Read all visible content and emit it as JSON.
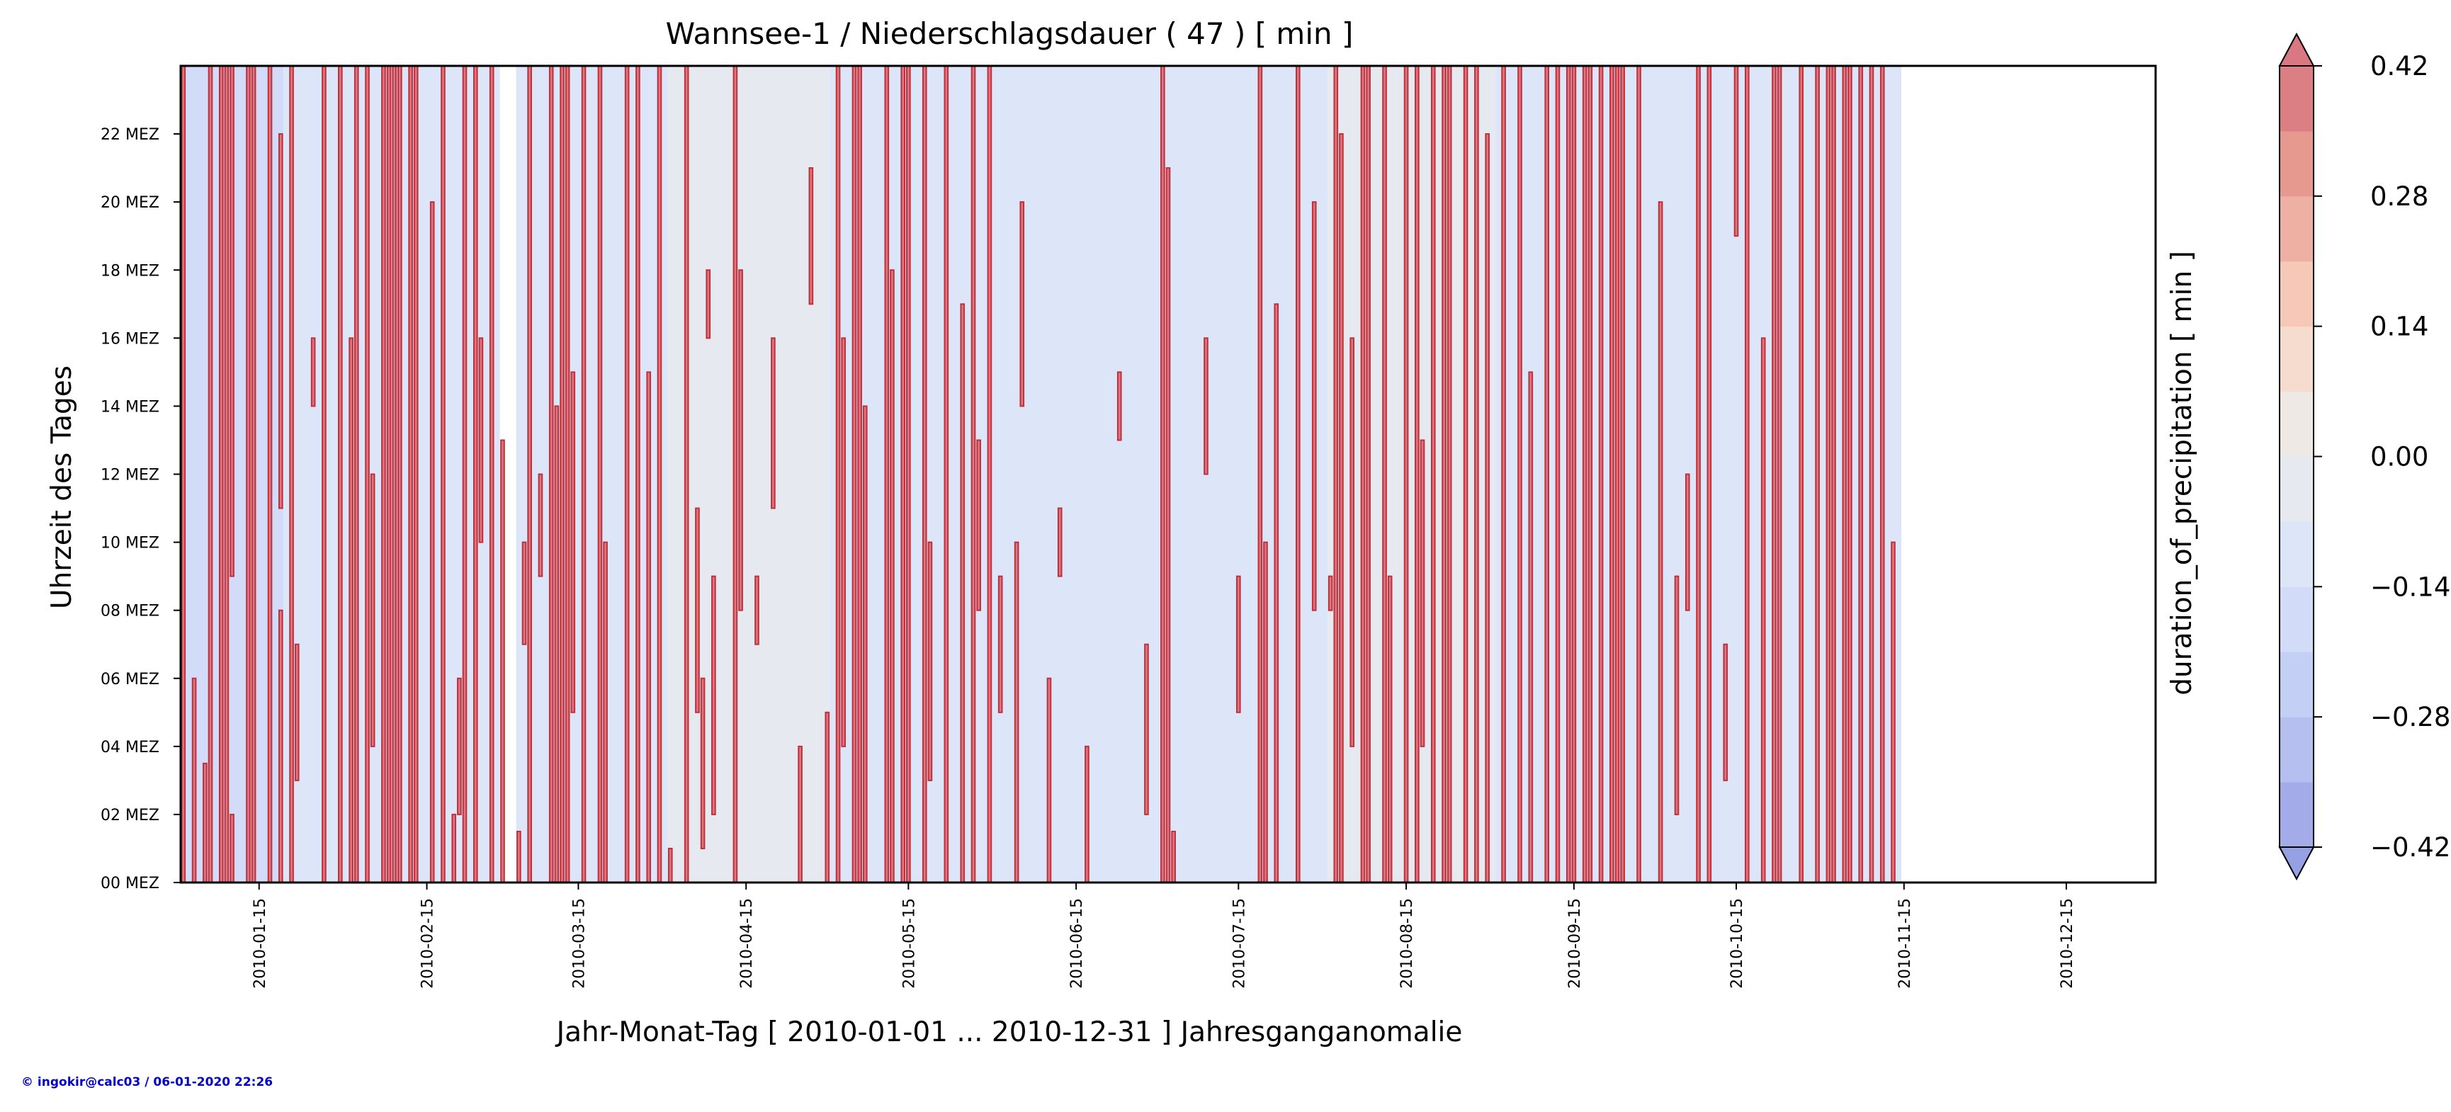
{
  "chart_data": {
    "type": "heatmap",
    "title": "Wannsee-1 / Niederschlagsdauer ( 47 ) [ min ]",
    "xlabel": "Jahr-Monat-Tag [ 2010-01-01 ... 2010-12-31 ] Jahresganganomalie",
    "ylabel": "Uhrzeit des Tages",
    "colorbar_label": "duration_of_precipitation [ min ]",
    "x_range": [
      "2010-01-01",
      "2010-12-31"
    ],
    "x_ticks": [
      "2010-01-15",
      "2010-02-15",
      "2010-03-15",
      "2010-04-15",
      "2010-05-15",
      "2010-06-15",
      "2010-07-15",
      "2010-08-15",
      "2010-09-15",
      "2010-10-15",
      "2010-11-15",
      "2010-12-15"
    ],
    "y_range": [
      0,
      24
    ],
    "y_ticks": [
      {
        "hour": 0,
        "label": "00 MEZ"
      },
      {
        "hour": 2,
        "label": "02 MEZ"
      },
      {
        "hour": 4,
        "label": "04 MEZ"
      },
      {
        "hour": 6,
        "label": "06 MEZ"
      },
      {
        "hour": 8,
        "label": "08 MEZ"
      },
      {
        "hour": 10,
        "label": "10 MEZ"
      },
      {
        "hour": 12,
        "label": "12 MEZ"
      },
      {
        "hour": 14,
        "label": "14 MEZ"
      },
      {
        "hour": 16,
        "label": "16 MEZ"
      },
      {
        "hour": 18,
        "label": "18 MEZ"
      },
      {
        "hour": 20,
        "label": "20 MEZ"
      },
      {
        "hour": 22,
        "label": "22 MEZ"
      }
    ],
    "colorbar": {
      "min": -0.42,
      "max": 0.42,
      "extend": "both",
      "ticks": [
        "0.42",
        "0.28",
        "0.14",
        "0.00",
        "−0.14",
        "−0.28",
        "−0.42"
      ],
      "levels": [
        -0.42,
        -0.35,
        -0.28,
        -0.21,
        -0.14,
        -0.07,
        0.0,
        0.07,
        0.14,
        0.21,
        0.28,
        0.35,
        0.42
      ],
      "colors": [
        "#a3abe8",
        "#b5c0f0",
        "#c4cff5",
        "#d2dcf8",
        "#dde6f8",
        "#e6e9ef",
        "#efe9e6",
        "#f6dbcf",
        "#f5c8b8",
        "#eeb0a3",
        "#e5998f",
        "#dc7f85"
      ],
      "under_color": "#96a0e4",
      "over_color": "#d97783"
    },
    "background_periods": [
      {
        "start": "2010-01-01",
        "end": "2010-01-20",
        "value": -0.21
      },
      {
        "start": "2010-01-20",
        "end": "2010-03-01",
        "value": -0.14
      },
      {
        "start": "2010-03-04",
        "end": "2010-04-01",
        "value": -0.14
      },
      {
        "start": "2010-04-01",
        "end": "2010-05-01",
        "value": -0.07
      },
      {
        "start": "2010-05-01",
        "end": "2010-08-01",
        "value": -0.14
      },
      {
        "start": "2010-08-01",
        "end": "2010-09-01",
        "value": -0.07
      },
      {
        "start": "2010-09-01",
        "end": "2010-11-15",
        "value": -0.14
      }
    ],
    "anomaly_value": 0.42,
    "precipitation_events": [
      {
        "date": "2010-01-01",
        "start": 0,
        "end": 24
      },
      {
        "date": "2010-01-03",
        "start": 0,
        "end": 6
      },
      {
        "date": "2010-01-05",
        "start": 0,
        "end": 3.5
      },
      {
        "date": "2010-01-06",
        "start": 0,
        "end": 24
      },
      {
        "date": "2010-01-08",
        "start": 0,
        "end": 24
      },
      {
        "date": "2010-01-09",
        "start": 0,
        "end": 24
      },
      {
        "date": "2010-01-10",
        "start": 0,
        "end": 2
      },
      {
        "date": "2010-01-10",
        "start": 9,
        "end": 24
      },
      {
        "date": "2010-01-13",
        "start": 0,
        "end": 24
      },
      {
        "date": "2010-01-14",
        "start": 0,
        "end": 24
      },
      {
        "date": "2010-01-17",
        "start": 0,
        "end": 24
      },
      {
        "date": "2010-01-19",
        "start": 0,
        "end": 8
      },
      {
        "date": "2010-01-19",
        "start": 11,
        "end": 22
      },
      {
        "date": "2010-01-21",
        "start": 0,
        "end": 24
      },
      {
        "date": "2010-01-22",
        "start": 3,
        "end": 7
      },
      {
        "date": "2010-01-25",
        "start": 14,
        "end": 16
      },
      {
        "date": "2010-01-27",
        "start": 0,
        "end": 24
      },
      {
        "date": "2010-01-30",
        "start": 0,
        "end": 24
      },
      {
        "date": "2010-02-01",
        "start": 0,
        "end": 16
      },
      {
        "date": "2010-02-02",
        "start": 0,
        "end": 24
      },
      {
        "date": "2010-02-04",
        "start": 0,
        "end": 24
      },
      {
        "date": "2010-02-05",
        "start": 4,
        "end": 12
      },
      {
        "date": "2010-02-07",
        "start": 0,
        "end": 24
      },
      {
        "date": "2010-02-08",
        "start": 0,
        "end": 24
      },
      {
        "date": "2010-02-09",
        "start": 0,
        "end": 24
      },
      {
        "date": "2010-02-10",
        "start": 0,
        "end": 24
      },
      {
        "date": "2010-02-12",
        "start": 0,
        "end": 24
      },
      {
        "date": "2010-02-13",
        "start": 0,
        "end": 24
      },
      {
        "date": "2010-02-16",
        "start": 0,
        "end": 20
      },
      {
        "date": "2010-02-18",
        "start": 0,
        "end": 24
      },
      {
        "date": "2010-02-20",
        "start": 0,
        "end": 2
      },
      {
        "date": "2010-02-21",
        "start": 2,
        "end": 6
      },
      {
        "date": "2010-02-22",
        "start": 0,
        "end": 24
      },
      {
        "date": "2010-02-24",
        "start": 0,
        "end": 24
      },
      {
        "date": "2010-02-25",
        "start": 10,
        "end": 16
      },
      {
        "date": "2010-02-27",
        "start": 0,
        "end": 24
      },
      {
        "date": "2010-03-01",
        "start": 0,
        "end": 13
      },
      {
        "date": "2010-03-04",
        "start": 0,
        "end": 1.5
      },
      {
        "date": "2010-03-05",
        "start": 7,
        "end": 10
      },
      {
        "date": "2010-03-06",
        "start": 0,
        "end": 24
      },
      {
        "date": "2010-03-08",
        "start": 9,
        "end": 12
      },
      {
        "date": "2010-03-10",
        "start": 0,
        "end": 24
      },
      {
        "date": "2010-03-11",
        "start": 0,
        "end": 14
      },
      {
        "date": "2010-03-12",
        "start": 0,
        "end": 24
      },
      {
        "date": "2010-03-13",
        "start": 0,
        "end": 24
      },
      {
        "date": "2010-03-14",
        "start": 5,
        "end": 15
      },
      {
        "date": "2010-03-16",
        "start": 0,
        "end": 24
      },
      {
        "date": "2010-03-19",
        "start": 0,
        "end": 24
      },
      {
        "date": "2010-03-20",
        "start": 0,
        "end": 10
      },
      {
        "date": "2010-03-24",
        "start": 0,
        "end": 24
      },
      {
        "date": "2010-03-26",
        "start": 0,
        "end": 24
      },
      {
        "date": "2010-03-28",
        "start": 0,
        "end": 15
      },
      {
        "date": "2010-03-30",
        "start": 0,
        "end": 24
      },
      {
        "date": "2010-04-01",
        "start": 0,
        "end": 1
      },
      {
        "date": "2010-04-04",
        "start": 0,
        "end": 24
      },
      {
        "date": "2010-04-06",
        "start": 5,
        "end": 11
      },
      {
        "date": "2010-04-07",
        "start": 1,
        "end": 6
      },
      {
        "date": "2010-04-08",
        "start": 16,
        "end": 18
      },
      {
        "date": "2010-04-09",
        "start": 2,
        "end": 9
      },
      {
        "date": "2010-04-13",
        "start": 0,
        "end": 24
      },
      {
        "date": "2010-04-14",
        "start": 8,
        "end": 18
      },
      {
        "date": "2010-04-17",
        "start": 7,
        "end": 9
      },
      {
        "date": "2010-04-20",
        "start": 11,
        "end": 16
      },
      {
        "date": "2010-04-25",
        "start": 0,
        "end": 4
      },
      {
        "date": "2010-04-27",
        "start": 17,
        "end": 21
      },
      {
        "date": "2010-04-30",
        "start": 0,
        "end": 5
      },
      {
        "date": "2010-05-02",
        "start": 0,
        "end": 24
      },
      {
        "date": "2010-05-03",
        "start": 4,
        "end": 16
      },
      {
        "date": "2010-05-05",
        "start": 0,
        "end": 24
      },
      {
        "date": "2010-05-06",
        "start": 0,
        "end": 24
      },
      {
        "date": "2010-05-07",
        "start": 0,
        "end": 14
      },
      {
        "date": "2010-05-11",
        "start": 0,
        "end": 24
      },
      {
        "date": "2010-05-12",
        "start": 0,
        "end": 18
      },
      {
        "date": "2010-05-14",
        "start": 0,
        "end": 24
      },
      {
        "date": "2010-05-15",
        "start": 0,
        "end": 24
      },
      {
        "date": "2010-05-18",
        "start": 0,
        "end": 24
      },
      {
        "date": "2010-05-19",
        "start": 3,
        "end": 10
      },
      {
        "date": "2010-05-22",
        "start": 0,
        "end": 24
      },
      {
        "date": "2010-05-25",
        "start": 0,
        "end": 17
      },
      {
        "date": "2010-05-27",
        "start": 0,
        "end": 24
      },
      {
        "date": "2010-05-28",
        "start": 8,
        "end": 13
      },
      {
        "date": "2010-05-30",
        "start": 0,
        "end": 24
      },
      {
        "date": "2010-06-01",
        "start": 5,
        "end": 9
      },
      {
        "date": "2010-06-04",
        "start": 0,
        "end": 10
      },
      {
        "date": "2010-06-05",
        "start": 14,
        "end": 20
      },
      {
        "date": "2010-06-10",
        "start": 0,
        "end": 6
      },
      {
        "date": "2010-06-12",
        "start": 9,
        "end": 11
      },
      {
        "date": "2010-06-17",
        "start": 0,
        "end": 4
      },
      {
        "date": "2010-06-23",
        "start": 13,
        "end": 15
      },
      {
        "date": "2010-06-28",
        "start": 2,
        "end": 7
      },
      {
        "date": "2010-07-01",
        "start": 0,
        "end": 24
      },
      {
        "date": "2010-07-02",
        "start": 0,
        "end": 21
      },
      {
        "date": "2010-07-03",
        "start": 0,
        "end": 1.5
      },
      {
        "date": "2010-07-09",
        "start": 12,
        "end": 16
      },
      {
        "date": "2010-07-15",
        "start": 5,
        "end": 9
      },
      {
        "date": "2010-07-19",
        "start": 0,
        "end": 24
      },
      {
        "date": "2010-07-20",
        "start": 0,
        "end": 10
      },
      {
        "date": "2010-07-22",
        "start": 0,
        "end": 17
      },
      {
        "date": "2010-07-26",
        "start": 0,
        "end": 24
      },
      {
        "date": "2010-07-29",
        "start": 8,
        "end": 20
      },
      {
        "date": "2010-08-01",
        "start": 8,
        "end": 9
      },
      {
        "date": "2010-08-02",
        "start": 0,
        "end": 24
      },
      {
        "date": "2010-08-03",
        "start": 0,
        "end": 22
      },
      {
        "date": "2010-08-05",
        "start": 4,
        "end": 16
      },
      {
        "date": "2010-08-07",
        "start": 0,
        "end": 24
      },
      {
        "date": "2010-08-08",
        "start": 0,
        "end": 24
      },
      {
        "date": "2010-08-11",
        "start": 0,
        "end": 24
      },
      {
        "date": "2010-08-12",
        "start": 0,
        "end": 9
      },
      {
        "date": "2010-08-15",
        "start": 0,
        "end": 24
      },
      {
        "date": "2010-08-17",
        "start": 0,
        "end": 24
      },
      {
        "date": "2010-08-18",
        "start": 4,
        "end": 13
      },
      {
        "date": "2010-08-20",
        "start": 0,
        "end": 24
      },
      {
        "date": "2010-08-22",
        "start": 0,
        "end": 24
      },
      {
        "date": "2010-08-23",
        "start": 0,
        "end": 24
      },
      {
        "date": "2010-08-26",
        "start": 0,
        "end": 24
      },
      {
        "date": "2010-08-28",
        "start": 0,
        "end": 24
      },
      {
        "date": "2010-08-30",
        "start": 0,
        "end": 22
      },
      {
        "date": "2010-09-02",
        "start": 0,
        "end": 24
      },
      {
        "date": "2010-09-05",
        "start": 0,
        "end": 24
      },
      {
        "date": "2010-09-07",
        "start": 0,
        "end": 15
      },
      {
        "date": "2010-09-10",
        "start": 0,
        "end": 24
      },
      {
        "date": "2010-09-12",
        "start": 0,
        "end": 24
      },
      {
        "date": "2010-09-14",
        "start": 0,
        "end": 24
      },
      {
        "date": "2010-09-15",
        "start": 0,
        "end": 24
      },
      {
        "date": "2010-09-17",
        "start": 0,
        "end": 24
      },
      {
        "date": "2010-09-18",
        "start": 0,
        "end": 24
      },
      {
        "date": "2010-09-20",
        "start": 0,
        "end": 24
      },
      {
        "date": "2010-09-22",
        "start": 0,
        "end": 24
      },
      {
        "date": "2010-09-23",
        "start": 0,
        "end": 24
      },
      {
        "date": "2010-09-24",
        "start": 0,
        "end": 24
      },
      {
        "date": "2010-09-27",
        "start": 0,
        "end": 24
      },
      {
        "date": "2010-10-01",
        "start": 0,
        "end": 20
      },
      {
        "date": "2010-10-04",
        "start": 2,
        "end": 9
      },
      {
        "date": "2010-10-06",
        "start": 8,
        "end": 12
      },
      {
        "date": "2010-10-08",
        "start": 0,
        "end": 24
      },
      {
        "date": "2010-10-10",
        "start": 0,
        "end": 24
      },
      {
        "date": "2010-10-13",
        "start": 3,
        "end": 7
      },
      {
        "date": "2010-10-15",
        "start": 19,
        "end": 24
      },
      {
        "date": "2010-10-17",
        "start": 0,
        "end": 24
      },
      {
        "date": "2010-10-20",
        "start": 0,
        "end": 16
      },
      {
        "date": "2010-10-22",
        "start": 0,
        "end": 24
      },
      {
        "date": "2010-10-23",
        "start": 0,
        "end": 24
      },
      {
        "date": "2010-10-27",
        "start": 0,
        "end": 24
      },
      {
        "date": "2010-10-30",
        "start": 0,
        "end": 24
      },
      {
        "date": "2010-11-01",
        "start": 0,
        "end": 24
      },
      {
        "date": "2010-11-02",
        "start": 0,
        "end": 24
      },
      {
        "date": "2010-11-04",
        "start": 0,
        "end": 24
      },
      {
        "date": "2010-11-05",
        "start": 0,
        "end": 24
      },
      {
        "date": "2010-11-07",
        "start": 0,
        "end": 24
      },
      {
        "date": "2010-11-09",
        "start": 0,
        "end": 24
      },
      {
        "date": "2010-11-11",
        "start": 0,
        "end": 24
      },
      {
        "date": "2010-11-13",
        "start": 0,
        "end": 10
      }
    ]
  },
  "footer": {
    "copyright": "© ingokir@calc03 / 06-01-2020 22:26"
  }
}
